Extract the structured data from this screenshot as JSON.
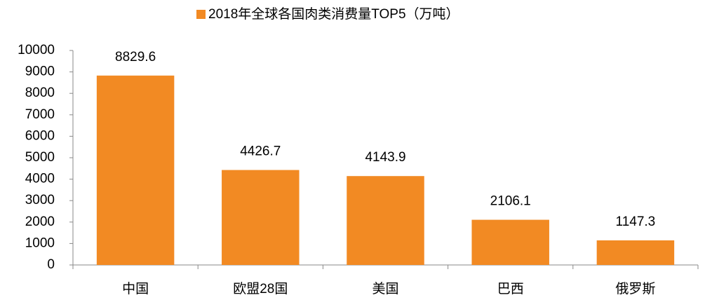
{
  "chart_data": {
    "type": "bar",
    "categories": [
      "中国",
      "欧盟28国",
      "美国",
      "巴西",
      "俄罗斯"
    ],
    "series": [
      {
        "name": "2018年全球各国肉类消费量TOP5（万吨）",
        "color": "#f28a23",
        "values": [
          8829.6,
          4426.7,
          4143.9,
          2106.1,
          1147.3
        ]
      }
    ],
    "ylim": [
      0,
      10000
    ],
    "yticks": [
      0,
      1000,
      2000,
      3000,
      4000,
      5000,
      6000,
      7000,
      8000,
      9000,
      10000
    ],
    "legend": "top"
  }
}
